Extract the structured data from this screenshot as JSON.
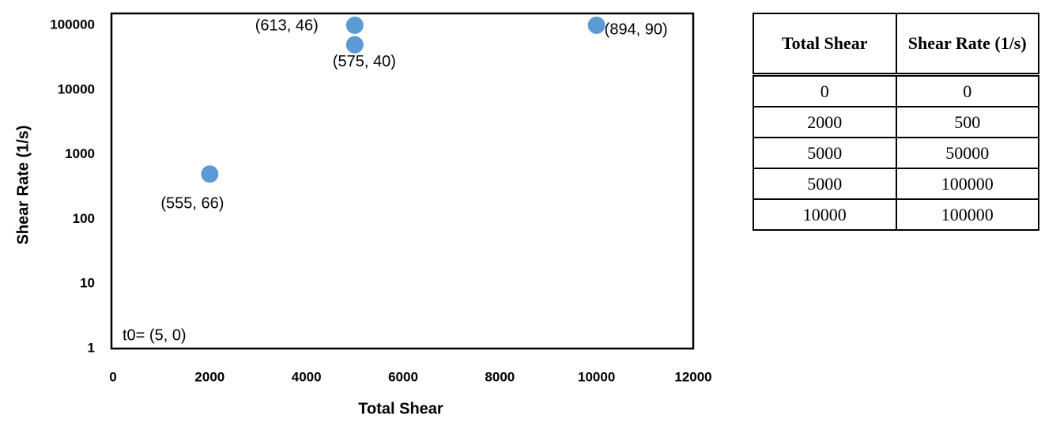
{
  "chart_data": {
    "type": "scatter",
    "x_label": "Total Shear",
    "y_label": "Shear Rate (1/s)",
    "x": [
      2000,
      5000,
      5000,
      10000
    ],
    "values": [
      500,
      50000,
      100000,
      100000
    ],
    "point_labels": [
      "(555, 66)",
      "(575, 40)",
      "(613, 46)",
      "(894, 90)"
    ],
    "annotation": "t0= (5, 0)",
    "color": "#5b9bd5",
    "xlim": [
      0,
      12000
    ],
    "xticks": [
      0,
      2000,
      4000,
      6000,
      8000,
      10000,
      12000
    ],
    "ylim": [
      1,
      100000
    ],
    "yticks": [
      1,
      10,
      100,
      1000,
      10000,
      100000
    ],
    "y_scale": "log",
    "grid": false
  },
  "table": {
    "header": [
      "Total Shear",
      "Shear Rate (1/s)"
    ],
    "rows": [
      [
        0,
        0
      ],
      [
        2000,
        500
      ],
      [
        5000,
        50000
      ],
      [
        5000,
        100000
      ],
      [
        10000,
        100000
      ]
    ]
  }
}
